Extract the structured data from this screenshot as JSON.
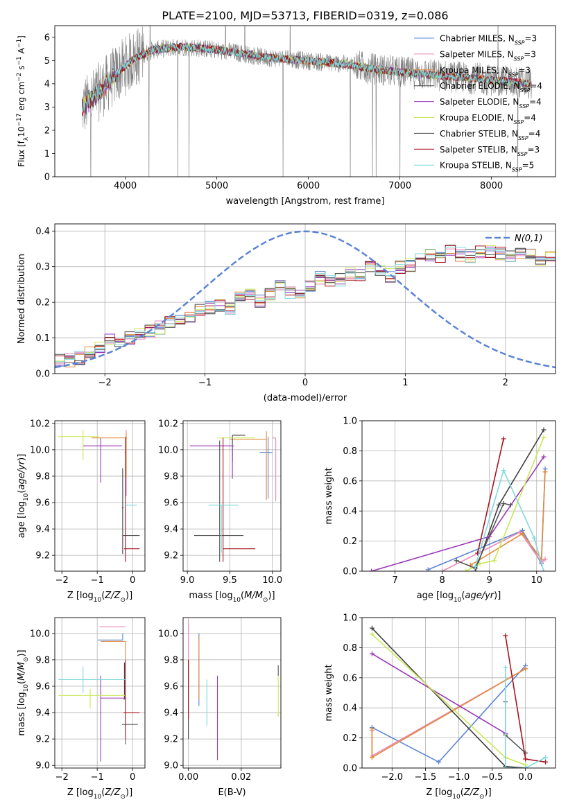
{
  "figure_title": "PLATE=2100, MJD=53713, FIBERID=0319, z=0.086",
  "models": [
    {
      "name": "Chabrier MILES, N_SSP=3",
      "label_main": "Chabrier MILES, N",
      "label_sub": "SSP",
      "label_tail": "=3",
      "color": "#5b84d6"
    },
    {
      "name": "Salpeter MILES, N_SSP=3",
      "label_main": "Salpeter MILES, N",
      "label_sub": "SSP",
      "label_tail": "=3",
      "color": "#e987b8"
    },
    {
      "name": "Kroupa MILES, N_SSP=3",
      "label_main": "Kroupa MILES, N",
      "label_sub": "SSP",
      "label_tail": "=3",
      "color": "#e38a3c"
    },
    {
      "name": "Chabrier ELODIE, N_SSP=4",
      "label_main": "Chabrier ELODIE, N",
      "label_sub": "SSP",
      "label_tail": "=4",
      "color": "#3f3f3f"
    },
    {
      "name": "Salpeter ELODIE, N_SSP=4",
      "label_main": "Salpeter ELODIE, N",
      "label_sub": "SSP",
      "label_tail": "=4",
      "color": "#9a36b8"
    },
    {
      "name": "Kroupa ELODIE, N_SSP=4",
      "label_main": "Kroupa ELODIE, N",
      "label_sub": "SSP",
      "label_tail": "=4",
      "color": "#c9e858"
    },
    {
      "name": "Chabrier STELIB, N_SSP=4",
      "label_main": "Chabrier STELIB, N",
      "label_sub": "SSP",
      "label_tail": "=4",
      "color": "#555555"
    },
    {
      "name": "Salpeter STELIB, N_SSP=3",
      "label_main": "Salpeter STELIB, N",
      "label_sub": "SSP",
      "label_tail": "=3",
      "color": "#a8141e"
    },
    {
      "name": "Kroupa STELIB, N_SSP=5",
      "label_main": "Kroupa STELIB, N",
      "label_sub": "SSP",
      "label_tail": "=5",
      "color": "#7fd9dc"
    }
  ],
  "chart_data": [
    {
      "id": "spectrum",
      "type": "line",
      "xlabel": "wavelength [Angstrom, rest frame]",
      "ylabel": "Flux [f_λ 10^-17 erg cm^-2 s^-1 A^-1]",
      "xlim": [
        3230,
        8700
      ],
      "ylim": [
        0,
        6.5
      ],
      "xticks": [
        4000,
        5000,
        6000,
        7000,
        8000
      ],
      "yticks": [
        0,
        1,
        2,
        3,
        4,
        5,
        6
      ],
      "data_color": "#808080",
      "wavelength_range": [
        3530,
        8440
      ],
      "continuum_x": [
        3530,
        3650,
        3800,
        3950,
        4100,
        4300,
        4600,
        4900,
        5200,
        5500,
        5800,
        6100,
        6400,
        6700,
        7000,
        7300,
        7600,
        7900,
        8200,
        8440
      ],
      "continuum_y": [
        2.95,
        3.4,
        4.0,
        4.6,
        5.1,
        5.45,
        5.6,
        5.5,
        5.35,
        5.15,
        5.05,
        4.95,
        4.85,
        4.65,
        4.5,
        4.4,
        4.3,
        4.2,
        4.1,
        4.0
      ]
    },
    {
      "id": "residuals",
      "type": "histogram",
      "xlabel": "(data-model)/error",
      "ylabel": "Normed distribution",
      "xlim": [
        -2.5,
        2.5
      ],
      "ylim": [
        0,
        0.42
      ],
      "xticks": [
        -2,
        -1,
        0,
        1,
        2
      ],
      "yticks": [
        0.0,
        0.1,
        0.2,
        0.3,
        0.4
      ],
      "bin_width": 0.1,
      "base_values": [
        0.04,
        0.038,
        0.045,
        0.06,
        0.075,
        0.095,
        0.085,
        0.1,
        0.115,
        0.12,
        0.13,
        0.145,
        0.155,
        0.16,
        0.175,
        0.185,
        0.195,
        0.18,
        0.215,
        0.225,
        0.205,
        0.22,
        0.245,
        0.225,
        0.215,
        0.25,
        0.27,
        0.255,
        0.265,
        0.28,
        0.28,
        0.3,
        0.29,
        0.275,
        0.3,
        0.305,
        0.32,
        0.335,
        0.325,
        0.345,
        0.335,
        0.33,
        0.34,
        0.345,
        0.335,
        0.33,
        0.34,
        0.335,
        0.315,
        0.335,
        0.33,
        0.305,
        0.31,
        0.315,
        0.33,
        0.335,
        0.33,
        0.315,
        0.325,
        0.34,
        0.33,
        0.3,
        0.28,
        0.275,
        0.285,
        0.3,
        0.275,
        0.255,
        0.265,
        0.25,
        0.245,
        0.26,
        0.255,
        0.24,
        0.23,
        0.24,
        0.22,
        0.205,
        0.2,
        0.19,
        0.185,
        0.17,
        0.16,
        0.15,
        0.135,
        0.12,
        0.11,
        0.105,
        0.095,
        0.09,
        0.08,
        0.075,
        0.07,
        0.065,
        0.058,
        0.052,
        0.05,
        0.045,
        0.04,
        0.035
      ],
      "gaussian_label": "N(0,1)",
      "gaussian_color": "#5b84d6"
    },
    {
      "id": "age_vs_Z",
      "type": "errorbar",
      "xlabel": "Z [log10(Z/Z⊙)]",
      "ylabel": "age [log10(age/yr)]",
      "xlim": [
        -2.2,
        0.35
      ],
      "ylim": [
        9.08,
        10.22
      ],
      "xticks": [
        -2,
        -1,
        0
      ],
      "yticks": [
        9.2,
        9.4,
        9.6,
        9.8,
        10.0,
        10.2
      ],
      "points": [
        {
          "model": 0,
          "x": -0.2,
          "xerr": [
            0.02,
            0.02
          ],
          "y": 9.98,
          "yerr": [
            0.35,
            0.12
          ]
        },
        {
          "model": 1,
          "x": -0.18,
          "xerr": [
            0.0,
            0.0
          ],
          "y": 10.05,
          "yerr": [
            0.4,
            0.1
          ]
        },
        {
          "model": 2,
          "x": -0.18,
          "xerr": [
            0.98,
            0.02
          ],
          "y": 10.09,
          "yerr": [
            0.3,
            0.04
          ]
        },
        {
          "model": 3,
          "x": -0.28,
          "xerr": [
            0.02,
            0.02
          ],
          "y": 9.56,
          "yerr": [
            0.35,
            0.3
          ]
        },
        {
          "model": 4,
          "x": -0.9,
          "xerr": [
            0.5,
            0.6
          ],
          "y": 10.03,
          "yerr": [
            0.28,
            0.06
          ]
        },
        {
          "model": 5,
          "x": -1.4,
          "xerr": [
            0.7,
            0.45
          ],
          "y": 10.1,
          "yerr": [
            0.18,
            0.05
          ]
        },
        {
          "model": 6,
          "x": -0.2,
          "xerr": [
            0.08,
            0.4
          ],
          "y": 9.35,
          "yerr": [
            0.2,
            0.2
          ]
        },
        {
          "model": 7,
          "x": -0.2,
          "xerr": [
            0.04,
            0.4
          ],
          "y": 9.25,
          "yerr": [
            0.1,
            0.84
          ]
        },
        {
          "model": 8,
          "x": -0.1,
          "xerr": [
            0.1,
            0.22
          ],
          "y": 9.58,
          "yerr": [
            0.0,
            0.0
          ]
        }
      ]
    },
    {
      "id": "age_vs_mass",
      "type": "errorbar",
      "xlabel": "mass [log10(M/M⊙)]",
      "ylabel": "",
      "xlim": [
        8.95,
        10.1
      ],
      "ylim": [
        9.08,
        10.22
      ],
      "xticks": [
        9.0,
        9.5,
        10.0
      ],
      "yticks": [
        9.2,
        9.4,
        9.6,
        9.8,
        10.0,
        10.2
      ],
      "points": [
        {
          "model": 0,
          "x": 9.95,
          "xerr": [
            0.1,
            0.05
          ],
          "y": 9.98,
          "yerr": [
            0.35,
            0.12
          ]
        },
        {
          "model": 1,
          "x": 10.04,
          "xerr": [
            0.04,
            0.0
          ],
          "y": 10.09,
          "yerr": [
            0.48,
            0.0
          ]
        },
        {
          "model": 2,
          "x": 9.93,
          "xerr": [
            0.43,
            0.0
          ],
          "y": 10.08,
          "yerr": [
            0.46,
            0.06
          ]
        },
        {
          "model": 3,
          "x": 9.53,
          "xerr": [
            0.0,
            0.15
          ],
          "y": 10.11,
          "yerr": [
            0.2,
            0.0
          ]
        },
        {
          "model": 4,
          "x": 9.53,
          "xerr": [
            0.5,
            0.02
          ],
          "y": 10.03,
          "yerr": [
            0.25,
            0.0
          ]
        },
        {
          "model": 5,
          "x": 9.55,
          "xerr": [
            0.2,
            0.25
          ],
          "y": 10.09,
          "yerr": [
            0.0,
            0.0
          ]
        },
        {
          "model": 6,
          "x": 9.38,
          "xerr": [
            0.3,
            0.28
          ],
          "y": 9.35,
          "yerr": [
            0.2,
            0.72
          ]
        },
        {
          "model": 7,
          "x": 9.42,
          "xerr": [
            0.0,
            0.38
          ],
          "y": 9.25,
          "yerr": [
            0.1,
            0.84
          ]
        },
        {
          "model": 8,
          "x": 9.4,
          "xerr": [
            0.15,
            0.2
          ],
          "y": 9.58,
          "yerr": [
            0.36,
            0.0
          ]
        }
      ]
    },
    {
      "id": "weight_vs_age",
      "type": "line",
      "xlabel": "age [log10(age/yr)]",
      "ylabel": "mass weight",
      "xlim": [
        6.3,
        10.4
      ],
      "ylim": [
        0,
        1.0
      ],
      "xticks": [
        7,
        8,
        9,
        10
      ],
      "yticks": [
        0.0,
        0.2,
        0.4,
        0.6,
        0.8,
        1.0
      ],
      "series": [
        {
          "model": 0,
          "x": [
            7.7,
            9.7,
            10.1,
            10.18
          ],
          "y": [
            0.01,
            0.27,
            0.05,
            0.68
          ]
        },
        {
          "model": 1,
          "x": [
            8.0,
            9.65,
            10.1,
            10.18
          ],
          "y": [
            0.0,
            0.26,
            0.06,
            0.08
          ]
        },
        {
          "model": 2,
          "x": [
            8.6,
            9.7,
            10.1,
            10.18
          ],
          "y": [
            0.04,
            0.25,
            0.08,
            0.66
          ]
        },
        {
          "model": 3,
          "x": [
            8.7,
            9.2,
            10.15
          ],
          "y": [
            0.0,
            0.44,
            0.94
          ]
        },
        {
          "model": 4,
          "x": [
            6.5,
            9.0,
            10.15
          ],
          "y": [
            0.0,
            0.23,
            0.76
          ]
        },
        {
          "model": 5,
          "x": [
            8.5,
            8.8,
            9.1,
            10.15
          ],
          "y": [
            0.0,
            0.05,
            0.07,
            0.89
          ]
        },
        {
          "model": 6,
          "x": [
            8.3,
            8.7,
            9.3,
            9.45
          ],
          "y": [
            0.07,
            0.02,
            0.45,
            0.44
          ]
        },
        {
          "model": 7,
          "x": [
            8.75,
            9.3
          ],
          "y": [
            0.12,
            0.88
          ]
        },
        {
          "model": 8,
          "x": [
            8.7,
            9.3,
            9.95,
            10.15
          ],
          "y": [
            0.03,
            0.67,
            0.22,
            0.0
          ]
        }
      ]
    },
    {
      "id": "mass_vs_Z",
      "type": "errorbar",
      "xlabel": "Z [log10(Z/Z⊙)]",
      "ylabel": "mass [log10(M/M⊙)]",
      "xlim": [
        -2.2,
        0.35
      ],
      "ylim": [
        8.98,
        10.12
      ],
      "xticks": [
        -2,
        -1,
        0
      ],
      "yticks": [
        9.0,
        9.2,
        9.4,
        9.6,
        9.8,
        10.0
      ],
      "points": [
        {
          "model": 0,
          "x": -0.28,
          "xerr": [
            0.7,
            0.0
          ],
          "y": 9.95,
          "yerr": [
            0.0,
            0.05
          ]
        },
        {
          "model": 1,
          "x": -0.2,
          "xerr": [
            0.74,
            0.0
          ],
          "y": 10.05,
          "yerr": [
            0.0,
            0.0
          ]
        },
        {
          "model": 2,
          "x": -0.2,
          "xerr": [
            0.7,
            0.0
          ],
          "y": 9.94,
          "yerr": [
            0.43,
            0.0
          ]
        },
        {
          "model": 3,
          "x": -0.23,
          "xerr": [
            0.02,
            0.0
          ],
          "y": 9.5,
          "yerr": [
            0.0,
            0.28
          ]
        },
        {
          "model": 4,
          "x": -0.9,
          "xerr": [
            0.0,
            0.7
          ],
          "y": 9.51,
          "yerr": [
            0.48,
            0.17
          ]
        },
        {
          "model": 5,
          "x": -1.2,
          "xerr": [
            0.9,
            1.0
          ],
          "y": 9.53,
          "yerr": [
            0.1,
            0.05
          ]
        },
        {
          "model": 6,
          "x": -0.2,
          "xerr": [
            0.1,
            0.35
          ],
          "y": 9.31,
          "yerr": [
            0.15,
            0.2
          ]
        },
        {
          "model": 7,
          "x": -0.2,
          "xerr": [
            0.06,
            0.4
          ],
          "y": 9.4,
          "yerr": [
            0.2,
            0.4
          ]
        },
        {
          "model": 8,
          "x": -1.4,
          "xerr": [
            0.7,
            1.2
          ],
          "y": 9.65,
          "yerr": [
            0.1,
            0.1
          ]
        }
      ]
    },
    {
      "id": "mass_vs_EBV",
      "type": "errorbar",
      "xlabel": "E(B-V)",
      "ylabel": "",
      "xlim": [
        -0.002,
        0.035
      ],
      "ylim": [
        8.98,
        10.12
      ],
      "xticks": [
        0.0,
        0.02
      ],
      "tick_labels": [
        "0.00",
        "0.02"
      ],
      "yticks": [
        9.0,
        9.2,
        9.4,
        9.6,
        9.8,
        10.0
      ],
      "points": [
        {
          "model": 0,
          "x": 0.004,
          "xerr": [
            0,
            0
          ],
          "y": 9.7,
          "yerr": [
            0.25,
            0.3
          ]
        },
        {
          "model": 1,
          "x": 0.0,
          "xerr": [
            0,
            0
          ],
          "y": 9.8,
          "yerr": [
            0.25,
            0.3
          ]
        },
        {
          "model": 2,
          "x": 0.004,
          "xerr": [
            0,
            0
          ],
          "y": 9.8,
          "yerr": [
            0.3,
            0.18
          ]
        },
        {
          "model": 3,
          "x": 0.0,
          "xerr": [
            0,
            0
          ],
          "y": 9.5,
          "yerr": [
            0.3,
            0.3
          ]
        },
        {
          "model": 4,
          "x": 0.011,
          "xerr": [
            0,
            0
          ],
          "y": 9.34,
          "yerr": [
            0.3,
            0.34
          ]
        },
        {
          "model": 5,
          "x": 0.034,
          "xerr": [
            0,
            0
          ],
          "y": 9.52,
          "yerr": [
            0.15,
            0.17
          ]
        },
        {
          "model": 6,
          "x": 0.034,
          "xerr": [
            0,
            0
          ],
          "y": 9.68,
          "yerr": [
            0.0,
            0.08
          ]
        },
        {
          "model": 7,
          "x": 0.0,
          "xerr": [
            0,
            0
          ],
          "y": 9.55,
          "yerr": [
            0.2,
            0.25
          ]
        },
        {
          "model": 8,
          "x": 0.007,
          "xerr": [
            0,
            0
          ],
          "y": 9.4,
          "yerr": [
            0.1,
            0.25
          ]
        }
      ]
    },
    {
      "id": "weight_vs_Z",
      "type": "line",
      "xlabel": "Z [log10(Z/Z⊙)]",
      "ylabel": "mass weight",
      "xlim": [
        -2.45,
        0.45
      ],
      "ylim": [
        0,
        1.0
      ],
      "xticks": [
        -2.0,
        -1.5,
        -1.0,
        -0.5,
        0.0
      ],
      "tick_labels": [
        "−2.0",
        "−1.5",
        "−1.0",
        "−0.5",
        "0.0"
      ],
      "yticks": [
        0.0,
        0.2,
        0.4,
        0.6,
        0.8,
        1.0
      ],
      "series": [
        {
          "model": 0,
          "x": [
            -2.3,
            -1.3,
            0.0
          ],
          "y": [
            0.27,
            0.04,
            0.68
          ]
        },
        {
          "model": 1,
          "x": [
            -2.3,
            -2.3,
            0.0
          ],
          "y": [
            0.25,
            0.08,
            0.66
          ]
        },
        {
          "model": 2,
          "x": [
            -2.3,
            -2.3,
            0.0
          ],
          "y": [
            0.26,
            0.07,
            0.66
          ]
        },
        {
          "model": 3,
          "x": [
            -2.3,
            -0.3,
            0.0
          ],
          "y": [
            0.93,
            0.01,
            0.0
          ]
        },
        {
          "model": 4,
          "x": [
            -2.3,
            -0.3
          ],
          "y": [
            0.76,
            0.23
          ]
        },
        {
          "model": 5,
          "x": [
            -2.3,
            -0.3,
            0.0
          ],
          "y": [
            0.89,
            0.07,
            0.02
          ]
        },
        {
          "model": 6,
          "x": [
            -0.3,
            -0.3,
            0.0
          ],
          "y": [
            0.44,
            0.22,
            0.1
          ]
        },
        {
          "model": 7,
          "x": [
            -0.3,
            0.0,
            0.3
          ],
          "y": [
            0.88,
            0.06,
            0.04
          ]
        },
        {
          "model": 8,
          "x": [
            -0.3,
            -0.3,
            0.0,
            0.3
          ],
          "y": [
            0.67,
            0.0,
            0.0,
            0.07
          ]
        }
      ]
    }
  ]
}
